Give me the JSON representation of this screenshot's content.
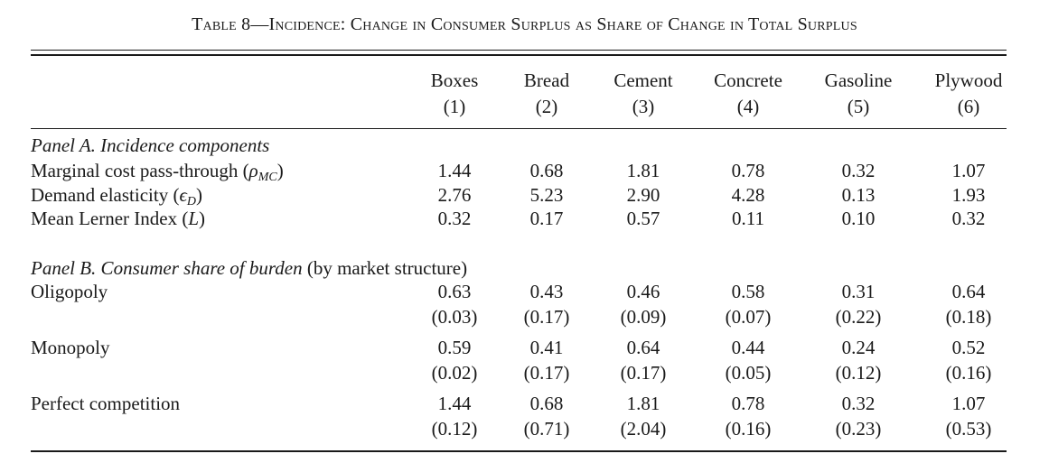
{
  "caption": "Table 8—Incidence: Change in Consumer Surplus as Share of Change in Total Surplus",
  "columns": [
    {
      "name": "Boxes",
      "num": "(1)"
    },
    {
      "name": "Bread",
      "num": "(2)"
    },
    {
      "name": "Cement",
      "num": "(3)"
    },
    {
      "name": "Concrete",
      "num": "(4)"
    },
    {
      "name": "Gasoline",
      "num": "(5)"
    },
    {
      "name": "Plywood",
      "num": "(6)"
    }
  ],
  "panel_a": {
    "title": "Panel A. Incidence components",
    "rows": [
      {
        "label_text": "Marginal cost pass-through (",
        "symbol": "ρ",
        "sub": "MC",
        "label_end": ")",
        "values": [
          "1.44",
          "0.68",
          "1.81",
          "0.78",
          "0.32",
          "1.07"
        ]
      },
      {
        "label_text": "Demand elasticity (",
        "symbol": "ϵ",
        "sub": "D",
        "label_end": ")",
        "values": [
          "2.76",
          "5.23",
          "2.90",
          "4.28",
          "0.13",
          "1.93"
        ]
      },
      {
        "label_text": "Mean Lerner Index (",
        "symbol": "L",
        "sub": "",
        "label_end": ")",
        "values": [
          "0.32",
          "0.17",
          "0.57",
          "0.11",
          "0.10",
          "0.32"
        ]
      }
    ]
  },
  "panel_b": {
    "title": "Panel B. Consumer share of burden ",
    "title_paren": "(by market structure)",
    "rows": [
      {
        "label": "Oligopoly",
        "values": [
          "0.63",
          "0.43",
          "0.46",
          "0.58",
          "0.31",
          "0.64"
        ],
        "se": [
          "(0.03)",
          "(0.17)",
          "(0.09)",
          "(0.07)",
          "(0.22)",
          "(0.18)"
        ]
      },
      {
        "label": "Monopoly",
        "values": [
          "0.59",
          "0.41",
          "0.64",
          "0.44",
          "0.24",
          "0.52"
        ],
        "se": [
          "(0.02)",
          "(0.17)",
          "(0.17)",
          "(0.05)",
          "(0.12)",
          "(0.16)"
        ]
      },
      {
        "label": "Perfect competition",
        "values": [
          "1.44",
          "0.68",
          "1.81",
          "0.78",
          "0.32",
          "1.07"
        ],
        "se": [
          "(0.12)",
          "(0.71)",
          "(2.04)",
          "(0.16)",
          "(0.23)",
          "(0.53)"
        ]
      }
    ]
  }
}
